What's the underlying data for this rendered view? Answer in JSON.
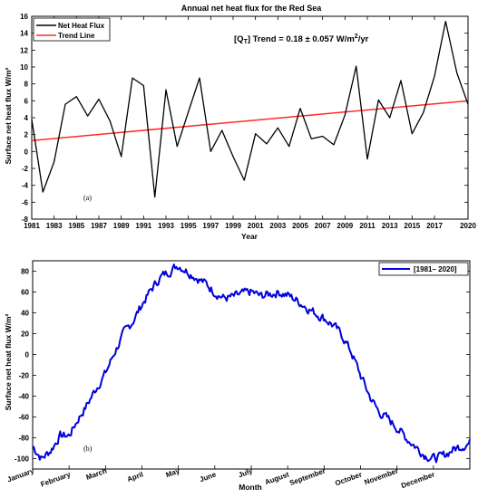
{
  "chart_data": [
    {
      "type": "line",
      "title": "Annual net heat flux for the Red Sea",
      "xlabel": "Year",
      "ylabel": "Surface net heat flux W/m²",
      "xlim": [
        1981,
        2020
      ],
      "ylim": [
        -8,
        16
      ],
      "x_ticks": [
        1981,
        1983,
        1985,
        1987,
        1989,
        1991,
        1993,
        1995,
        1997,
        1999,
        2001,
        2003,
        2005,
        2007,
        2009,
        2011,
        2013,
        2015,
        2017,
        2020
      ],
      "y_ticks": [
        -8,
        -6,
        -4,
        -2,
        0,
        2,
        4,
        6,
        8,
        10,
        12,
        14,
        16
      ],
      "grid": false,
      "legend_position": "top-left",
      "annotation": {
        "prefix": "[Q",
        "sub": "T",
        "mid": "] Trend = 0.18 ± 0.057 W/m",
        "sup": "2",
        "suffix": "/yr"
      },
      "panel_label": "(a)",
      "series": [
        {
          "name": "Net Heat Flux",
          "color": "#000000",
          "x": [
            1981,
            1982,
            1983,
            1984,
            1985,
            1986,
            1987,
            1988,
            1989,
            1990,
            1991,
            1992,
            1993,
            1994,
            1995,
            1996,
            1997,
            1998,
            1999,
            2000,
            2001,
            2002,
            2003,
            2004,
            2005,
            2006,
            2007,
            2008,
            2009,
            2010,
            2011,
            2012,
            2013,
            2014,
            2015,
            2016,
            2017,
            2018,
            2019,
            2020
          ],
          "values": [
            3.8,
            -4.8,
            -1.2,
            5.6,
            6.5,
            4.2,
            6.2,
            3.6,
            -0.6,
            8.7,
            7.8,
            -5.4,
            7.3,
            0.6,
            4.7,
            8.7,
            0.0,
            2.5,
            -0.6,
            -3.4,
            2.1,
            0.9,
            2.8,
            0.6,
            5.1,
            1.5,
            1.8,
            0.8,
            4.3,
            10.1,
            -0.9,
            6.1,
            4.0,
            8.4,
            2.1,
            4.6,
            8.9,
            15.4,
            9.3,
            5.6
          ]
        },
        {
          "name": "Trend Line",
          "color": "#ff2a2a",
          "x": [
            1981,
            2020
          ],
          "values": [
            1.3,
            6.0
          ]
        }
      ]
    },
    {
      "type": "line",
      "xlabel": "Month",
      "ylabel": "Surface net heat flux W/m²",
      "ylim": [
        -110,
        90
      ],
      "y_ticks": [
        -100,
        -80,
        -60,
        -40,
        -20,
        0,
        20,
        40,
        60,
        80
      ],
      "x_ticks": [
        "January",
        "February",
        "March",
        "April",
        "May",
        "June",
        "July",
        "August",
        "September",
        "October",
        "November",
        "December"
      ],
      "grid": false,
      "legend_position": "top-right",
      "panel_label": "(b)",
      "series": [
        {
          "name": "[1981– 2020]",
          "color": "#0000dd",
          "x": [
            0,
            0.25,
            0.5,
            0.75,
            1,
            1.25,
            1.5,
            1.75,
            2,
            2.25,
            2.5,
            2.75,
            3,
            3.25,
            3.5,
            3.75,
            4,
            4.25,
            4.5,
            4.75,
            5,
            5.25,
            5.5,
            5.75,
            6,
            6.25,
            6.5,
            6.75,
            7,
            7.25,
            7.5,
            7.75,
            8,
            8.25,
            8.5,
            8.75,
            9,
            9.25,
            9.5,
            9.75,
            10,
            10.25,
            10.5,
            10.75,
            11,
            11.25,
            11.5,
            11.75,
            12
          ],
          "values": [
            -88,
            -100,
            -92,
            -78,
            -78,
            -62,
            -48,
            -32,
            -18,
            2,
            20,
            32,
            48,
            62,
            74,
            80,
            86,
            80,
            74,
            68,
            60,
            54,
            55,
            58,
            60,
            56,
            58,
            60,
            57,
            52,
            46,
            40,
            35,
            28,
            18,
            2,
            -20,
            -40,
            -55,
            -62,
            -70,
            -80,
            -88,
            -96,
            -100,
            -98,
            -92,
            -88,
            -85
          ]
        }
      ]
    }
  ]
}
